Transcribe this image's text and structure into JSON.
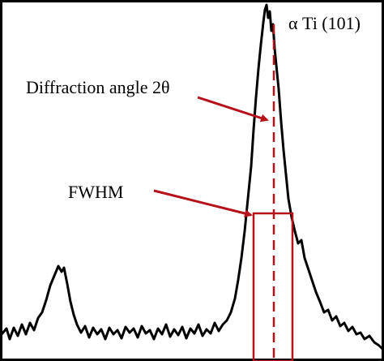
{
  "labels": {
    "peak": "α Ti (101)",
    "angle": "Diffraction angle 2θ",
    "fwhm": "FWHM"
  }
}
